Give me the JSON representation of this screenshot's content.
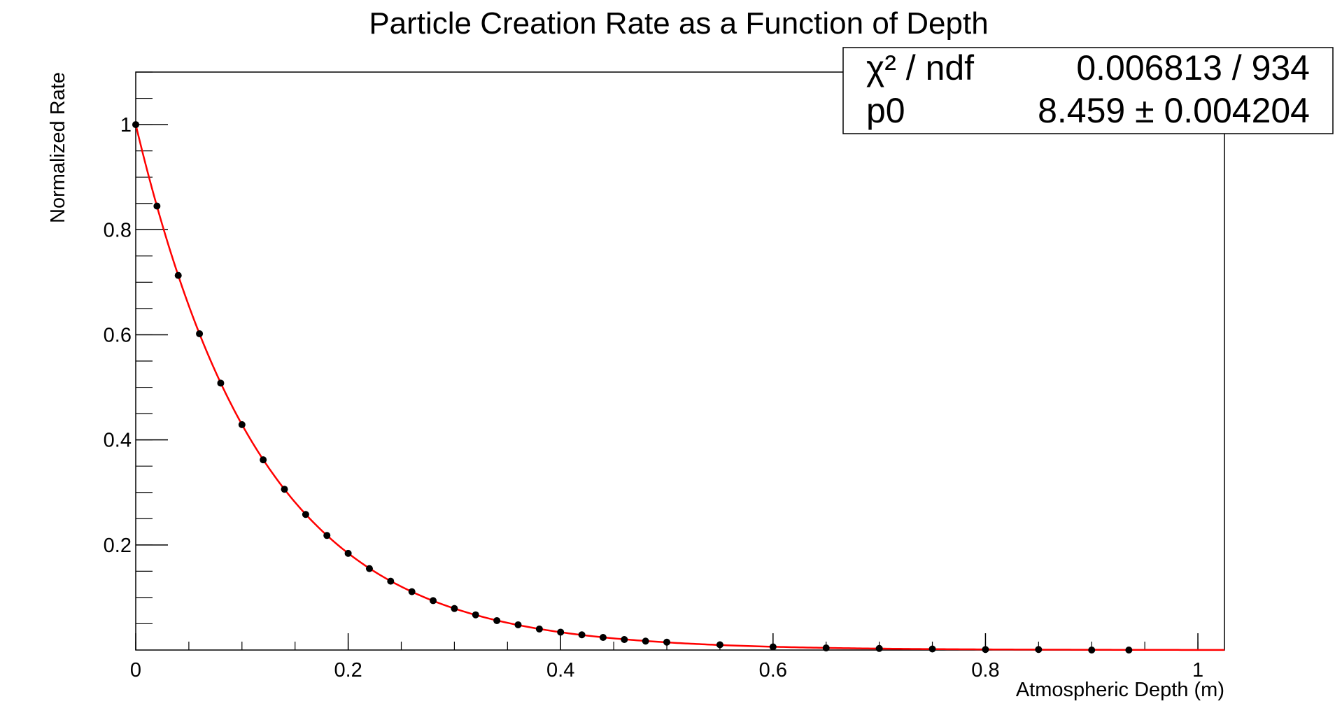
{
  "chart_data": {
    "type": "scatter",
    "title": "Particle Creation Rate as a Function of Depth",
    "xlabel": "Atmospheric Depth (m)",
    "ylabel": "Normalized Rate",
    "xlim": [
      0,
      1.025
    ],
    "ylim": [
      0,
      1.1
    ],
    "x_ticks": [
      0,
      0.2,
      0.4,
      0.6,
      0.8,
      1
    ],
    "x_tick_labels": [
      "0",
      "0.2",
      "0.4",
      "0.6",
      "0.8",
      "1"
    ],
    "y_ticks": [
      0.2,
      0.4,
      0.6,
      0.8,
      1
    ],
    "y_tick_labels": [
      "0.2",
      "0.4",
      "0.6",
      "0.8",
      "1"
    ],
    "grid": false,
    "series": [
      {
        "color": "#000000",
        "style": "markers",
        "x": [
          0,
          0.02,
          0.04,
          0.06,
          0.08,
          0.1,
          0.12,
          0.14,
          0.16,
          0.18,
          0.2,
          0.22,
          0.24,
          0.26,
          0.28,
          0.3,
          0.32,
          0.34,
          0.36,
          0.38,
          0.4,
          0.42,
          0.44,
          0.46,
          0.48,
          0.5,
          0.55,
          0.6,
          0.65,
          0.7,
          0.75,
          0.8,
          0.85,
          0.9,
          0.935
        ],
        "y": [
          1.0,
          0.845,
          0.713,
          0.602,
          0.508,
          0.429,
          0.362,
          0.306,
          0.258,
          0.218,
          0.184,
          0.155,
          0.131,
          0.111,
          0.094,
          0.079,
          0.067,
          0.056,
          0.048,
          0.04,
          0.034,
          0.029,
          0.024,
          0.02,
          0.017,
          0.015,
          0.01,
          0.006,
          0.004,
          0.003,
          0.002,
          0.001,
          0.001,
          0.0,
          0.0
        ]
      },
      {
        "color": "#ff0000",
        "style": "line",
        "function": "exp(-p0*x)",
        "p0": 8.459,
        "x_range": [
          0,
          1.025
        ]
      }
    ],
    "stats_box": {
      "position": "top-right",
      "rows": [
        {
          "label": "χ² / ndf",
          "value": "0.006813 / 934"
        },
        {
          "label": "p0",
          "value": "8.459 ± 0.004204"
        }
      ]
    }
  }
}
